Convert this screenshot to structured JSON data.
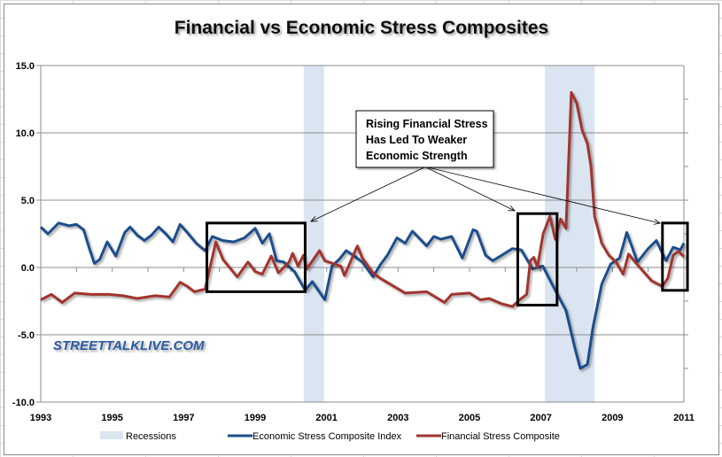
{
  "chart_data": {
    "type": "line",
    "title": "Financial vs Economic Stress Composites",
    "xlabel": "",
    "ylabel": "",
    "xlim": [
      1993,
      2011
    ],
    "ylim": [
      -10,
      15
    ],
    "x_ticks": [
      "1993",
      "1995",
      "1997",
      "1999",
      "2001",
      "2003",
      "2005",
      "2007",
      "2009",
      "2011"
    ],
    "y_ticks": [
      "15.0",
      "10.0",
      "5.0",
      "0.0",
      "-5.0",
      "-10.0"
    ],
    "grid": "horizontal",
    "legend_placement": "bottom",
    "recessions": {
      "name": "Recessions",
      "color": "#dbe5f1",
      "periods": [
        [
          2000.36,
          2000.93
        ],
        [
          2007.11,
          2008.5
        ]
      ]
    },
    "series": [
      {
        "name": "Economic Stress Composite Index",
        "color": "#1f4e8c",
        "points": [
          [
            1993.0,
            3.0
          ],
          [
            1993.2,
            2.5
          ],
          [
            1993.5,
            3.3
          ],
          [
            1993.8,
            3.1
          ],
          [
            1994.0,
            3.2
          ],
          [
            1994.2,
            2.8
          ],
          [
            1994.35,
            1.5
          ],
          [
            1994.5,
            0.3
          ],
          [
            1994.65,
            0.6
          ],
          [
            1994.86,
            1.9
          ],
          [
            1995.1,
            0.85
          ],
          [
            1995.35,
            2.6
          ],
          [
            1995.5,
            3.0
          ],
          [
            1995.7,
            2.4
          ],
          [
            1995.9,
            2.0
          ],
          [
            1996.1,
            2.4
          ],
          [
            1996.3,
            3.0
          ],
          [
            1996.5,
            2.5
          ],
          [
            1996.7,
            1.9
          ],
          [
            1996.9,
            3.2
          ],
          [
            1997.1,
            2.6
          ],
          [
            1997.35,
            1.8
          ],
          [
            1997.6,
            1.25
          ],
          [
            1997.8,
            2.3
          ],
          [
            1998.1,
            2.0
          ],
          [
            1998.4,
            1.9
          ],
          [
            1998.7,
            2.2
          ],
          [
            1999.0,
            2.9
          ],
          [
            1999.2,
            1.8
          ],
          [
            1999.4,
            2.5
          ],
          [
            1999.6,
            0.5
          ],
          [
            1999.8,
            0.4
          ],
          [
            2000.1,
            -0.3
          ],
          [
            2000.4,
            -1.7
          ],
          [
            2000.6,
            -1.05
          ],
          [
            2000.95,
            -2.4
          ],
          [
            2001.15,
            0.1
          ],
          [
            2001.35,
            0.6
          ],
          [
            2001.55,
            1.25
          ],
          [
            2001.8,
            0.8
          ],
          [
            2002.0,
            0.4
          ],
          [
            2002.3,
            -0.7
          ],
          [
            2002.5,
            0.2
          ],
          [
            2002.7,
            0.9
          ],
          [
            2002.97,
            2.2
          ],
          [
            2003.2,
            1.8
          ],
          [
            2003.4,
            2.7
          ],
          [
            2003.8,
            1.6
          ],
          [
            2004.0,
            2.3
          ],
          [
            2004.2,
            2.1
          ],
          [
            2004.5,
            2.3
          ],
          [
            2004.8,
            0.7
          ],
          [
            2005.1,
            2.8
          ],
          [
            2005.2,
            2.7
          ],
          [
            2005.45,
            0.9
          ],
          [
            2005.65,
            0.5
          ],
          [
            2005.9,
            0.9
          ],
          [
            2006.2,
            1.4
          ],
          [
            2006.45,
            1.3
          ],
          [
            2006.76,
            -0.1
          ],
          [
            2007.05,
            0.1
          ],
          [
            2007.4,
            -1.7
          ],
          [
            2007.7,
            -3.2
          ],
          [
            2007.95,
            -6.0
          ],
          [
            2008.1,
            -7.5
          ],
          [
            2008.3,
            -7.2
          ],
          [
            2008.45,
            -4.5
          ],
          [
            2008.7,
            -1.25
          ],
          [
            2008.95,
            0.25
          ],
          [
            2009.2,
            0.7
          ],
          [
            2009.4,
            2.6
          ],
          [
            2009.7,
            0.4
          ],
          [
            2010.0,
            1.4
          ],
          [
            2010.23,
            2.0
          ],
          [
            2010.5,
            0.5
          ],
          [
            2010.7,
            1.5
          ],
          [
            2010.9,
            1.3
          ],
          [
            2011.0,
            1.8
          ]
        ]
      },
      {
        "name": "Financial Stress Composite",
        "color": "#a0352f",
        "points": [
          [
            1993.0,
            -2.4
          ],
          [
            1993.3,
            -2.0
          ],
          [
            1993.6,
            -2.6
          ],
          [
            1993.95,
            -1.9
          ],
          [
            1994.4,
            -2.0
          ],
          [
            1994.9,
            -2.0
          ],
          [
            1995.3,
            -2.1
          ],
          [
            1995.7,
            -2.3
          ],
          [
            1996.2,
            -2.1
          ],
          [
            1996.6,
            -2.2
          ],
          [
            1996.9,
            -1.1
          ],
          [
            1997.1,
            -1.4
          ],
          [
            1997.3,
            -1.8
          ],
          [
            1997.6,
            -1.6
          ],
          [
            1997.9,
            1.9
          ],
          [
            1998.1,
            0.6
          ],
          [
            1998.5,
            -0.7
          ],
          [
            1998.8,
            0.4
          ],
          [
            1999.0,
            -0.3
          ],
          [
            1999.2,
            -0.5
          ],
          [
            1999.45,
            0.85
          ],
          [
            1999.65,
            -0.4
          ],
          [
            1999.95,
            0.4
          ],
          [
            2000.05,
            1.05
          ],
          [
            2000.2,
            0.1
          ],
          [
            2000.35,
            0.9
          ],
          [
            2000.45,
            -0.1
          ],
          [
            2000.8,
            1.25
          ],
          [
            2000.95,
            0.5
          ],
          [
            2001.4,
            0.1
          ],
          [
            2001.5,
            -0.6
          ],
          [
            2001.86,
            1.6
          ],
          [
            2002.0,
            0.7
          ],
          [
            2002.3,
            -0.4
          ],
          [
            2002.5,
            -0.8
          ],
          [
            2003.2,
            -1.9
          ],
          [
            2003.8,
            -1.8
          ],
          [
            2004.3,
            -2.6
          ],
          [
            2004.5,
            -2.0
          ],
          [
            2005.0,
            -1.9
          ],
          [
            2005.3,
            -2.4
          ],
          [
            2005.55,
            -2.3
          ],
          [
            2005.9,
            -2.7
          ],
          [
            2006.2,
            -2.9
          ],
          [
            2006.4,
            -2.4
          ],
          [
            2006.6,
            -2.0
          ],
          [
            2006.7,
            0.5
          ],
          [
            2006.8,
            0.75
          ],
          [
            2006.9,
            0.0
          ],
          [
            2007.06,
            2.5
          ],
          [
            2007.25,
            3.8
          ],
          [
            2007.4,
            2.1
          ],
          [
            2007.55,
            3.6
          ],
          [
            2007.7,
            2.9
          ],
          [
            2007.85,
            13.0
          ],
          [
            2008.0,
            12.2
          ],
          [
            2008.15,
            10.2
          ],
          [
            2008.3,
            9.2
          ],
          [
            2008.4,
            7.5
          ],
          [
            2008.5,
            3.8
          ],
          [
            2008.7,
            1.8
          ],
          [
            2008.9,
            0.9
          ],
          [
            2009.1,
            0.4
          ],
          [
            2009.3,
            -0.5
          ],
          [
            2009.45,
            1.0
          ],
          [
            2009.7,
            0.2
          ],
          [
            2010.1,
            -1.0
          ],
          [
            2010.4,
            -1.4
          ],
          [
            2010.55,
            -0.8
          ],
          [
            2010.7,
            0.9
          ],
          [
            2010.85,
            1.2
          ],
          [
            2011.0,
            0.8
          ]
        ]
      }
    ],
    "annotations": {
      "callout_lines": [
        "Rising Financial Stress",
        "Has Led To Weaker",
        "Economic Strength"
      ],
      "highlight_boxes": [
        [
          1997.65,
          2000.4,
          -1.8,
          3.3
        ],
        [
          2006.35,
          2007.45,
          -2.8,
          4.0
        ],
        [
          2010.4,
          2011.1,
          -1.7,
          3.3
        ]
      ]
    },
    "watermark": "STREETTALKLIVE.COM"
  }
}
